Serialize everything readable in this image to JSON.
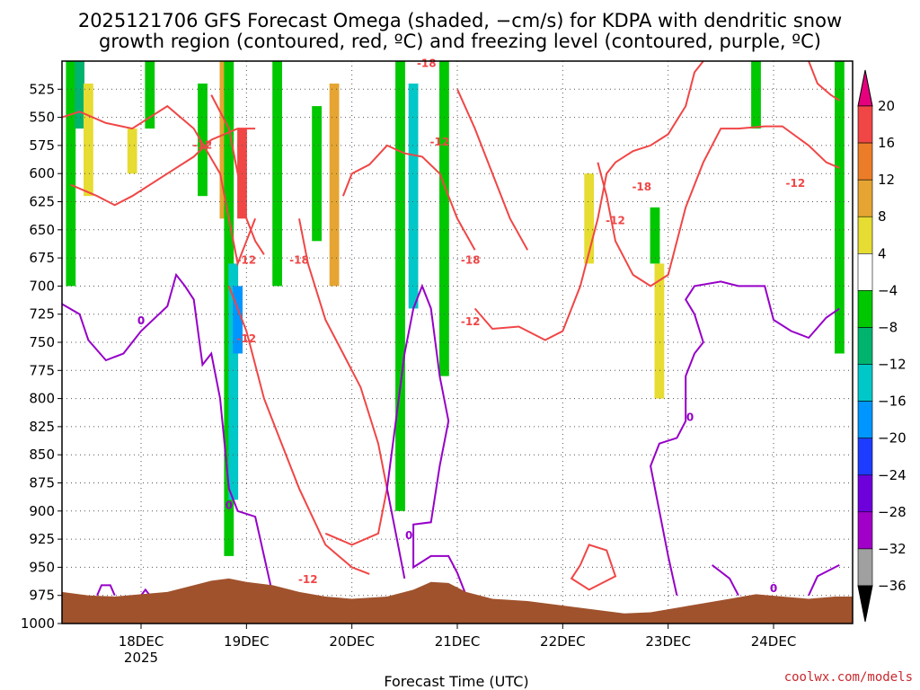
{
  "title": {
    "line1": "2025121706 GFS Forecast Omega (shaded, −cm/s) for KDPA with dendritic snow",
    "line2": "growth region (contoured, red, ºC) and freezing level (contoured, purple, ºC)"
  },
  "credit": "coolwx.com/models",
  "chart_data": {
    "type": "heatmap",
    "title": "2025121706 GFS Forecast Omega (shaded, −cm/s) for KDPA with dendritic snow growth region (contoured, red, ºC) and freezing level (contoured, purple, ºC)",
    "xlabel": "Forecast Time (UTC)",
    "ylabel": "",
    "x_ticks": [
      {
        "label": "18DEC",
        "sub": "2025",
        "hour": 24
      },
      {
        "label": "19DEC",
        "sub": "",
        "hour": 48
      },
      {
        "label": "20DEC",
        "sub": "",
        "hour": 72
      },
      {
        "label": "21DEC",
        "sub": "",
        "hour": 96
      },
      {
        "label": "22DEC",
        "sub": "",
        "hour": 120
      },
      {
        "label": "23DEC",
        "sub": "",
        "hour": 144
      },
      {
        "label": "24DEC",
        "sub": "",
        "hour": 168
      }
    ],
    "xlim_hours": [
      6,
      186
    ],
    "y_ticks": [
      "525",
      "550",
      "575",
      "600",
      "625",
      "650",
      "675",
      "700",
      "725",
      "750",
      "775",
      "800",
      "825",
      "850",
      "875",
      "900",
      "925",
      "950",
      "975",
      "1000"
    ],
    "ylim_hPa": [
      500,
      1000
    ],
    "y_inverted": true,
    "grid": "dotted",
    "colorbar": {
      "labels": [
        "20",
        "16",
        "12",
        "8",
        "4",
        "−4",
        "−8",
        "−12",
        "−16",
        "−20",
        "−24",
        "−28",
        "−32",
        "−36"
      ],
      "bins": [
        {
          "range": "20+",
          "color": "#e6007e"
        },
        {
          "range": "16..20",
          "color": "#f04646"
        },
        {
          "range": "12..16",
          "color": "#ec7d28"
        },
        {
          "range": "8..12",
          "color": "#e6a532"
        },
        {
          "range": "4..8",
          "color": "#e6dc32"
        },
        {
          "range": "-4..4",
          "color": "#ffffff"
        },
        {
          "range": "-8..-4",
          "color": "#00c800"
        },
        {
          "range": "-12..-8",
          "color": "#00b46e"
        },
        {
          "range": "-16..-12",
          "color": "#00c8c8"
        },
        {
          "range": "-20..-16",
          "color": "#0096ff"
        },
        {
          "range": "-24..-20",
          "color": "#1e3cff"
        },
        {
          "range": "-28..-24",
          "color": "#6e00dc"
        },
        {
          "range": "-32..-28",
          "color": "#a000c8"
        },
        {
          "range": "-36..-32",
          "color": "#a0a0a0"
        },
        {
          "range": "<-36",
          "color": "#000000"
        }
      ]
    },
    "contours": {
      "dendritic": {
        "color": "#f04646",
        "labels": [
          "-18",
          "-12",
          "-12",
          "-18",
          "-12",
          "-18",
          "-12",
          "-12",
          "-18",
          "-12",
          "-12",
          "-12"
        ]
      },
      "freezing": {
        "color": "#9600c8",
        "labels": [
          "0",
          "0",
          "0",
          "0",
          "0"
        ]
      }
    },
    "terrain_color": "#a0522d",
    "omega_features": [
      {
        "hour": 8,
        "p_top": 500,
        "p_bottom": 700,
        "bin": "-8..-4"
      },
      {
        "hour": 10,
        "p_top": 500,
        "p_bottom": 560,
        "bin": "-12..-8"
      },
      {
        "hour": 12,
        "p_top": 520,
        "p_bottom": 620,
        "bin": "4..8"
      },
      {
        "hour": 22,
        "p_top": 560,
        "p_bottom": 600,
        "bin": "4..8"
      },
      {
        "hour": 26,
        "p_top": 500,
        "p_bottom": 560,
        "bin": "-8..-4"
      },
      {
        "hour": 38,
        "p_top": 520,
        "p_bottom": 620,
        "bin": "-8..-4"
      },
      {
        "hour": 43,
        "p_top": 500,
        "p_bottom": 640,
        "bin": "8..12"
      },
      {
        "hour": 44,
        "p_top": 500,
        "p_bottom": 940,
        "bin": "-8..-4"
      },
      {
        "hour": 45,
        "p_top": 680,
        "p_bottom": 890,
        "bin": "-16..-12"
      },
      {
        "hour": 46,
        "p_top": 700,
        "p_bottom": 760,
        "bin": "-20..-16"
      },
      {
        "hour": 47,
        "p_top": 560,
        "p_bottom": 640,
        "bin": "16..20"
      },
      {
        "hour": 55,
        "p_top": 500,
        "p_bottom": 700,
        "bin": "-8..-4"
      },
      {
        "hour": 64,
        "p_top": 540,
        "p_bottom": 660,
        "bin": "-8..-4"
      },
      {
        "hour": 68,
        "p_top": 520,
        "p_bottom": 700,
        "bin": "8..12"
      },
      {
        "hour": 83,
        "p_top": 500,
        "p_bottom": 900,
        "bin": "-8..-4"
      },
      {
        "hour": 86,
        "p_top": 520,
        "p_bottom": 720,
        "bin": "-16..-12"
      },
      {
        "hour": 93,
        "p_top": 500,
        "p_bottom": 780,
        "bin": "-8..-4"
      },
      {
        "hour": 126,
        "p_top": 600,
        "p_bottom": 680,
        "bin": "4..8"
      },
      {
        "hour": 141,
        "p_top": 630,
        "p_bottom": 680,
        "bin": "-8..-4"
      },
      {
        "hour": 142,
        "p_top": 680,
        "p_bottom": 800,
        "bin": "4..8"
      },
      {
        "hour": 164,
        "p_top": 500,
        "p_bottom": 560,
        "bin": "-8..-4"
      },
      {
        "hour": 183,
        "p_top": 500,
        "p_bottom": 760,
        "bin": "-8..-4"
      }
    ]
  }
}
